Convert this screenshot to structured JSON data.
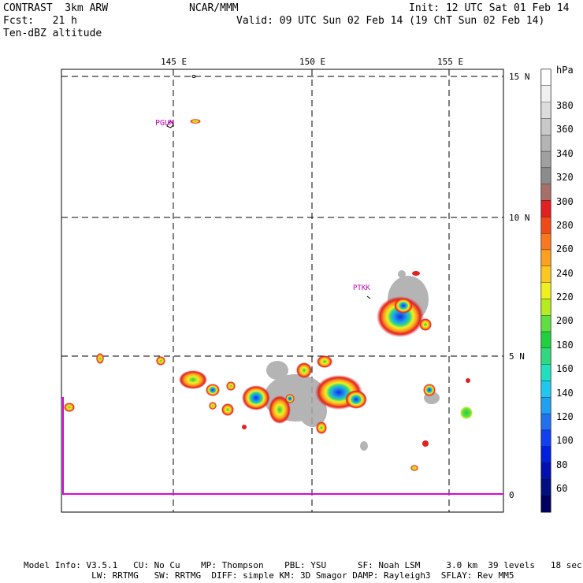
{
  "header": {
    "left_line1": "CONTRAST  3km ARW",
    "left_line2": "Fcst:   21 h",
    "left_line3": "Ten-dBZ altitude",
    "center": "NCAR/MMM",
    "right_line1": "Init: 12 UTC Sat 01 Feb 14",
    "right_line2": "Valid: 09 UTC Sun 02 Feb 14 (19 ChT Sun 02 Feb 14)"
  },
  "map": {
    "lon_labels": [
      "145 E",
      "150 E",
      "155 E"
    ],
    "lat_labels": [
      "15 N",
      "10 N",
      "5 N",
      "0"
    ],
    "stations": [
      {
        "id": "PGUM"
      },
      {
        "id": "PTKK"
      }
    ]
  },
  "colorbar": {
    "unit": "hPa",
    "labels": [
      "380",
      "360",
      "340",
      "320",
      "300",
      "280",
      "260",
      "240",
      "220",
      "200",
      "180",
      "160",
      "140",
      "120",
      "100",
      "80",
      "60"
    ],
    "colors": [
      "#ffffff",
      "#f0f0f0",
      "#dcdcdc",
      "#c8c8c8",
      "#b4b4b4",
      "#a0a0a0",
      "#8c8c8c",
      "#a67068",
      "#e22020",
      "#f04a18",
      "#f87820",
      "#fca020",
      "#fcc820",
      "#f0f020",
      "#b4ec20",
      "#60e040",
      "#20d040",
      "#30d880",
      "#20e0c0",
      "#20c8f0",
      "#20a0f0",
      "#2070f0",
      "#1040f0",
      "#0020e0",
      "#0010b0",
      "#001080",
      "#000060"
    ]
  },
  "footer": {
    "line1": "Model Info: V3.5.1   CU: No Cu    MP: Thompson    PBL: YSU      SF: Noah LSM     3.0 km  39 levels   18 sec",
    "line2": "             LW: RRTMG   SW: RRTMG  DIFF: simple KM: 3D Smagor DAMP: Rayleigh3  SFLAY: Rev MM5"
  }
}
